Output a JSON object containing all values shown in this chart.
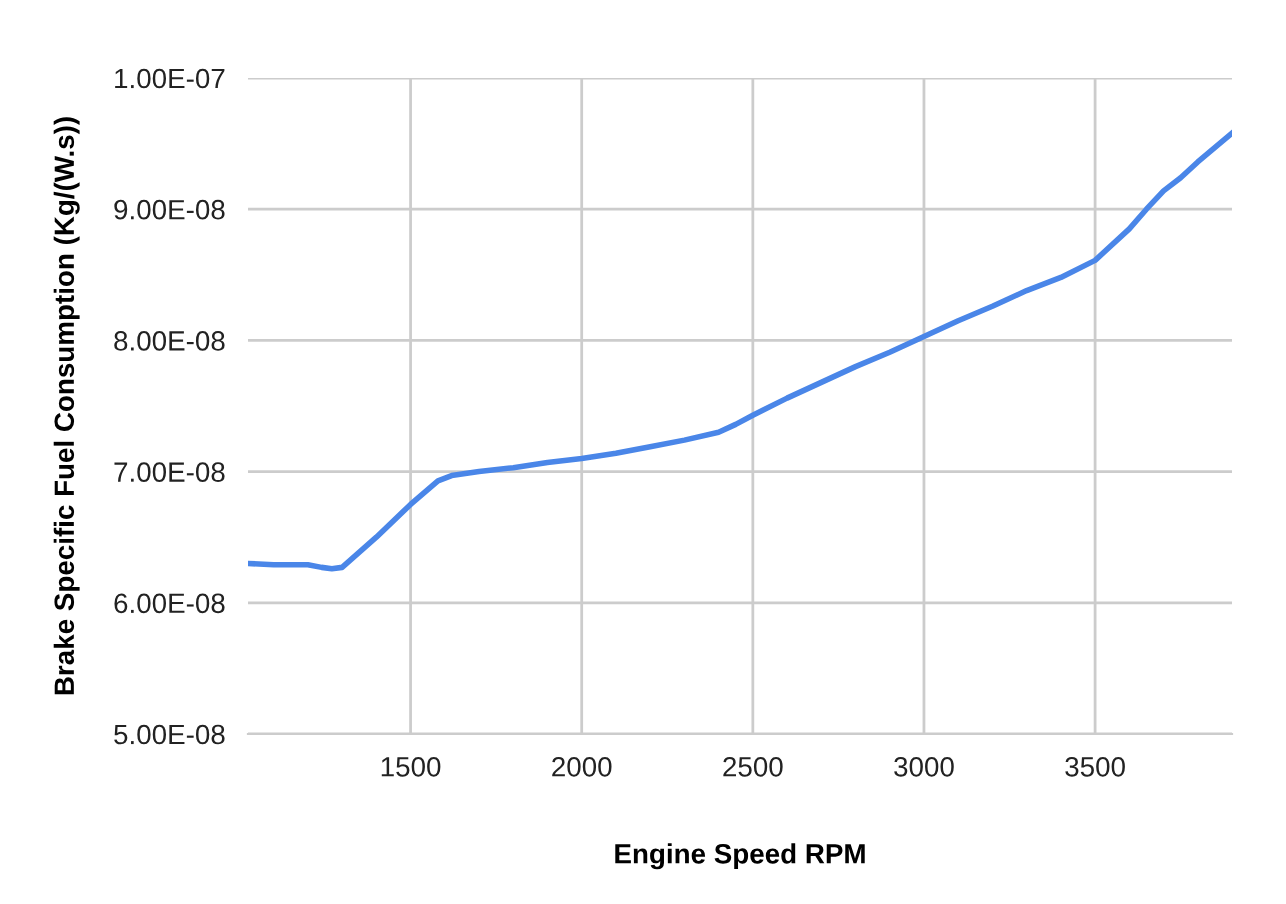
{
  "chart_data": {
    "type": "line",
    "xlabel": "Engine Speed RPM",
    "ylabel": "Brake Specific Fuel Consumption (Kg/(W.s))",
    "x": [
      1025,
      1100,
      1200,
      1240,
      1270,
      1300,
      1400,
      1500,
      1580,
      1620,
      1700,
      1800,
      1900,
      2000,
      2100,
      2200,
      2300,
      2400,
      2450,
      2500,
      2600,
      2700,
      2800,
      2900,
      3000,
      3100,
      3200,
      3300,
      3400,
      3500,
      3600,
      3650,
      3700,
      3750,
      3800,
      3900
    ],
    "series": [
      {
        "color": "#4a86e8",
        "values": [
          6.3e-08,
          6.29e-08,
          6.29e-08,
          6.27e-08,
          6.26e-08,
          6.27e-08,
          6.5e-08,
          6.75e-08,
          6.93e-08,
          6.97e-08,
          7e-08,
          7.03e-08,
          7.07e-08,
          7.1e-08,
          7.14e-08,
          7.19e-08,
          7.24e-08,
          7.3e-08,
          7.36e-08,
          7.43e-08,
          7.56e-08,
          7.68e-08,
          7.8e-08,
          7.91e-08,
          8.03e-08,
          8.15e-08,
          8.26e-08,
          8.38e-08,
          8.48e-08,
          8.61e-08,
          8.85e-08,
          9e-08,
          9.14e-08,
          9.24e-08,
          9.36e-08,
          9.58e-08
        ]
      }
    ],
    "xlim": [
      1025,
      3900
    ],
    "xticks": [
      1500,
      2000,
      2500,
      3000,
      3500
    ],
    "ylim": [
      5e-08,
      1e-07
    ],
    "yticks": [
      {
        "value": 5e-08,
        "label": "5.00E-08"
      },
      {
        "value": 6e-08,
        "label": "6.00E-08"
      },
      {
        "value": 7e-08,
        "label": "7.00E-08"
      },
      {
        "value": 8e-08,
        "label": "8.00E-08"
      },
      {
        "value": 9e-08,
        "label": "9.00E-08"
      },
      {
        "value": 1e-07,
        "label": "1.00E-07"
      }
    ],
    "grid": true,
    "marker": "none",
    "line_style": "solid"
  }
}
